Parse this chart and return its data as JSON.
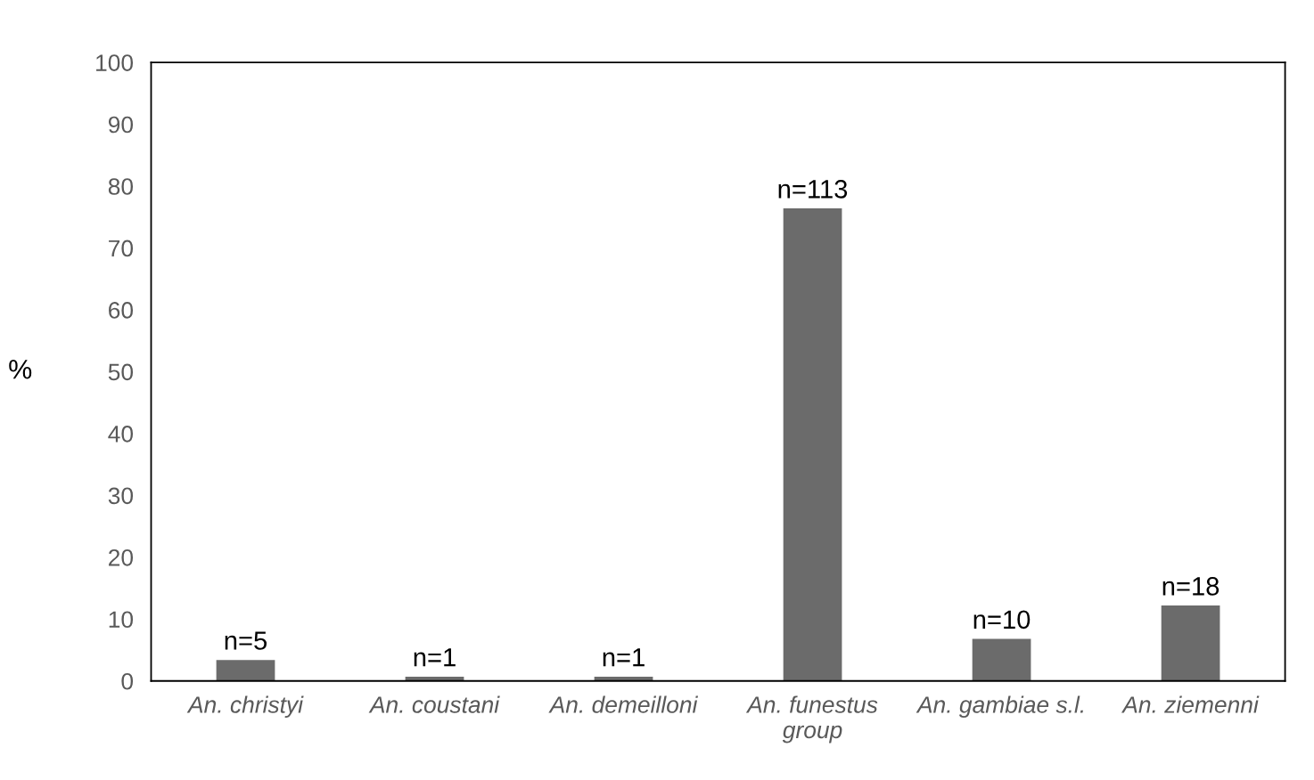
{
  "chart_data": {
    "type": "bar",
    "ylabel": "%",
    "categories": [
      "An. christyi",
      "An. coustani",
      "An. demeilloni",
      "An. funestus group",
      "An. gambiae s.l.",
      "An. ziemenni"
    ],
    "values": [
      3.4,
      0.7,
      0.7,
      76.4,
      6.8,
      12.2
    ],
    "annotations": [
      {
        "text": "n=5",
        "x": "An. christyi",
        "y": 3.4
      },
      {
        "text": "n=1",
        "x": "An. coustani",
        "y": 0.7
      },
      {
        "text": "n=1",
        "x": "An. demeilloni",
        "y": 0.7
      },
      {
        "text": "n=113",
        "x": "An. funestus group",
        "y": 76.4
      },
      {
        "text": "n=10",
        "x": "An. gambiae s.l.",
        "y": 6.8
      },
      {
        "text": "n=18",
        "x": "An. ziemenni",
        "y": 12.2
      }
    ],
    "color": "#6b6b6b",
    "ylim": [
      0,
      100
    ],
    "yticks": [
      0,
      10,
      20,
      30,
      40,
      50,
      60,
      70,
      80,
      90,
      100
    ],
    "grid": false,
    "legend": false
  }
}
